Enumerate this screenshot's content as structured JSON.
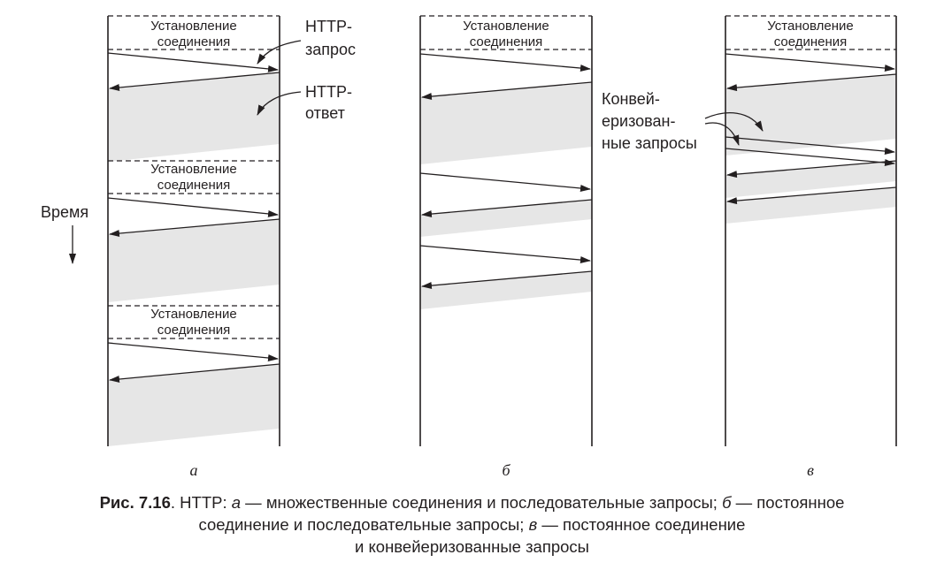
{
  "colors": {
    "line": "#231f20",
    "band": "#e6e6e6"
  },
  "labels": {
    "setup_line1": "Установление",
    "setup_line2": "соединения",
    "http_request_line1": "HTTP-",
    "http_request_line2": "запрос",
    "http_response_line1": "HTTP-",
    "http_response_line2": "ответ",
    "time": "Время",
    "pipelined_line1": "Конвей-",
    "pipelined_line2": "еризован-",
    "pipelined_line3": "ные запросы"
  },
  "panels": [
    {
      "label": "а"
    },
    {
      "label": "б"
    },
    {
      "label": "в"
    }
  ],
  "caption": {
    "fig_no": "Рис. 7.16",
    "part1": ". HTTP: ",
    "a": "а",
    "part2": " — множественные соединения и последовательные запросы; ",
    "b": "б",
    "part3": " — постоянное",
    "line2a": "соединение и последовательные запросы; ",
    "v": "в",
    "line2b": " — постоянное соединение",
    "line3": "и конвейеризованные запросы"
  }
}
